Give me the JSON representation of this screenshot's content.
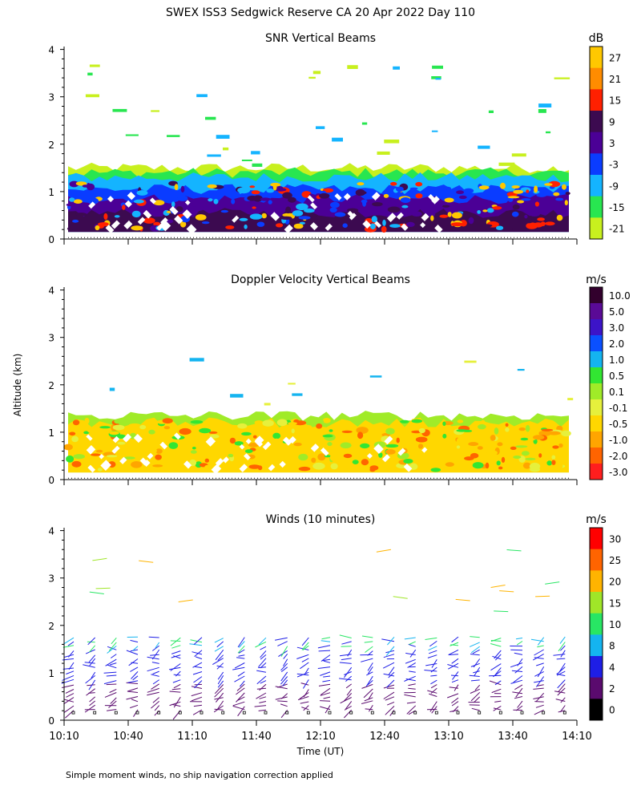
{
  "title": "SWEX ISS3 Sedgwick Reserve CA  20 Apr 2022 Day 110",
  "footer": "Simple moment winds, no ship navigation correction applied",
  "ylabel": "Altitude (km)",
  "xlabel": "Time (UT)",
  "x_ticks": [
    "10:10",
    "10:40",
    "11:10",
    "11:40",
    "12:10",
    "12:40",
    "13:10",
    "13:40",
    "14:10"
  ],
  "y_ticks": [
    "0",
    "1",
    "2",
    "3",
    "4"
  ],
  "chart_data": [
    {
      "type": "heatmap",
      "title": "SNR Vertical Beams",
      "colorbar_unit": "dB",
      "colorbar_labels": [
        "27",
        "21",
        "15",
        "9",
        "3",
        "-3",
        "-9",
        "-15",
        "-21"
      ],
      "colorbar_colors": [
        "#ffc800",
        "#ff8c00",
        "#ff2000",
        "#3c0a50",
        "#4b0096",
        "#0a3cff",
        "#14b4ff",
        "#28e650",
        "#c8f01e"
      ],
      "xlim": [
        "10:10",
        "14:10"
      ],
      "ylim": [
        0,
        4
      ],
      "layers": [
        {
          "label": "-21",
          "top_km": 1.5
        },
        {
          "label": "-15",
          "top_km": 1.4
        },
        {
          "label": "-9",
          "top_km": 1.3
        },
        {
          "label": "-3",
          "top_km": 1.05
        },
        {
          "label": "3",
          "top_km": 0.85
        },
        {
          "label": "9",
          "top_km": 0.55
        }
      ]
    },
    {
      "type": "heatmap",
      "title": "Doppler Velocity Vertical Beams",
      "colorbar_unit": "m/s",
      "colorbar_labels": [
        "10.0",
        "5.0",
        "3.0",
        "2.0",
        "1.0",
        "0.5",
        "0.1",
        "-0.1",
        "-0.5",
        "-1.0",
        "-2.0",
        "-3.0"
      ],
      "colorbar_colors": [
        "#32002d",
        "#5a0a96",
        "#3c14c8",
        "#0a50ff",
        "#14b4f0",
        "#32e632",
        "#a0eb28",
        "#e6f03c",
        "#ffd700",
        "#ffa500",
        "#ff6400",
        "#ff1e1e"
      ],
      "xlim": [
        "10:10",
        "14:10"
      ],
      "ylim": [
        0,
        4
      ],
      "layers": [
        {
          "label": "0.1",
          "top_km": 1.35
        },
        {
          "label": "-0.5",
          "top_km": 1.2
        }
      ]
    },
    {
      "type": "scatter",
      "title": "Winds (10 minutes)",
      "colorbar_unit": "m/s",
      "colorbar_labels": [
        "30",
        "25",
        "20",
        "15",
        "10",
        "8",
        "4",
        "2",
        "0"
      ],
      "colorbar_colors": [
        "#ff0000",
        "#ff6400",
        "#ffb400",
        "#a0e628",
        "#28e664",
        "#14b4f0",
        "#1e1ee6",
        "#5a0a6e",
        "#000000"
      ],
      "xlim": [
        "10:10",
        "14:10"
      ],
      "ylim": [
        0,
        4
      ],
      "profile_times": [
        "10:10",
        "10:20",
        "10:30",
        "10:40",
        "10:50",
        "11:00",
        "11:10",
        "11:20",
        "11:30",
        "11:40",
        "11:50",
        "12:00",
        "12:10",
        "12:20",
        "12:30",
        "12:40",
        "12:50",
        "13:00",
        "13:10",
        "13:20",
        "13:30",
        "13:40",
        "13:50",
        "14:00"
      ]
    }
  ]
}
